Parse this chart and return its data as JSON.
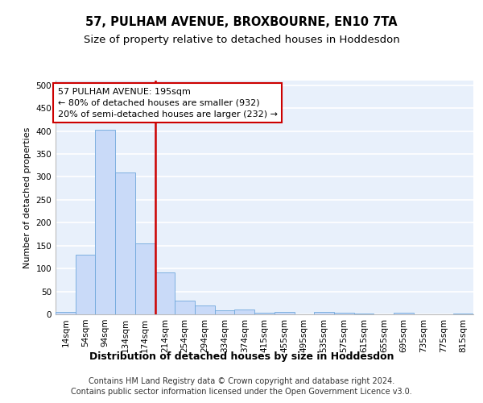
{
  "title": "57, PULHAM AVENUE, BROXBOURNE, EN10 7TA",
  "subtitle": "Size of property relative to detached houses in Hoddesdon",
  "xlabel": "Distribution of detached houses by size in Hoddesdon",
  "ylabel": "Number of detached properties",
  "footnote1": "Contains HM Land Registry data © Crown copyright and database right 2024.",
  "footnote2": "Contains public sector information licensed under the Open Government Licence v3.0.",
  "bar_labels": [
    "14sqm",
    "54sqm",
    "94sqm",
    "134sqm",
    "174sqm",
    "214sqm",
    "254sqm",
    "294sqm",
    "334sqm",
    "374sqm",
    "415sqm",
    "455sqm",
    "495sqm",
    "535sqm",
    "575sqm",
    "615sqm",
    "655sqm",
    "695sqm",
    "735sqm",
    "775sqm",
    "815sqm"
  ],
  "bar_values": [
    5,
    130,
    403,
    310,
    155,
    92,
    30,
    20,
    8,
    11,
    3,
    5,
    0,
    5,
    3,
    1,
    0,
    3,
    0,
    0,
    2
  ],
  "bar_color": "#c9daf8",
  "bar_edge_color": "#6fa8dc",
  "background_color": "#e8f0fb",
  "grid_color": "#ffffff",
  "vline_index": 4.5,
  "vline_color": "#cc0000",
  "annotation_line1": "57 PULHAM AVENUE: 195sqm",
  "annotation_line2": "← 80% of detached houses are smaller (932)",
  "annotation_line3": "20% of semi-detached houses are larger (232) →",
  "annotation_box_color": "#ffffff",
  "annotation_box_edge": "#cc0000",
  "ylim": [
    0,
    510
  ],
  "yticks": [
    0,
    50,
    100,
    150,
    200,
    250,
    300,
    350,
    400,
    450,
    500
  ],
  "title_fontsize": 10.5,
  "subtitle_fontsize": 9.5,
  "xlabel_fontsize": 9,
  "ylabel_fontsize": 8,
  "tick_fontsize": 7.5,
  "annotation_fontsize": 8,
  "footnote_fontsize": 7
}
